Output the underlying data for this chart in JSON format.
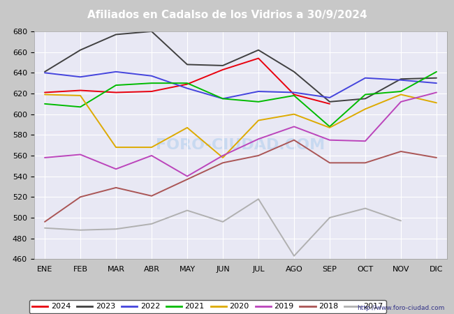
{
  "title": "Afiliados en Cadalso de los Vidrios a 30/9/2024",
  "months": [
    "ENE",
    "FEB",
    "MAR",
    "ABR",
    "MAY",
    "JUN",
    "JUL",
    "AGO",
    "SEP",
    "OCT",
    "NOV",
    "DIC"
  ],
  "ylim": [
    460,
    680
  ],
  "yticks": [
    460,
    480,
    500,
    520,
    540,
    560,
    580,
    600,
    620,
    640,
    660,
    680
  ],
  "series": {
    "2024": {
      "color": "#e8000d",
      "data": [
        621,
        623,
        621,
        622,
        629,
        643,
        654,
        619,
        610,
        null,
        null,
        null
      ]
    },
    "2023": {
      "color": "#404040",
      "data": [
        641,
        662,
        677,
        680,
        648,
        647,
        662,
        641,
        612,
        615,
        634,
        635
      ]
    },
    "2022": {
      "color": "#4444dd",
      "data": [
        640,
        636,
        641,
        637,
        625,
        615,
        622,
        621,
        616,
        635,
        633,
        630
      ]
    },
    "2021": {
      "color": "#00bb00",
      "data": [
        610,
        607,
        628,
        630,
        630,
        615,
        612,
        618,
        588,
        619,
        622,
        641
      ]
    },
    "2020": {
      "color": "#ddaa00",
      "data": [
        619,
        618,
        568,
        568,
        587,
        558,
        594,
        600,
        587,
        605,
        619,
        611
      ]
    },
    "2019": {
      "color": "#bb44bb",
      "data": [
        558,
        561,
        547,
        560,
        540,
        560,
        576,
        588,
        575,
        574,
        612,
        621
      ]
    },
    "2018": {
      "color": "#aa5555",
      "data": [
        496,
        520,
        529,
        521,
        537,
        553,
        560,
        575,
        553,
        553,
        564,
        558
      ]
    },
    "2017": {
      "color": "#b0b0b0",
      "data": [
        490,
        488,
        489,
        494,
        507,
        496,
        518,
        463,
        500,
        509,
        497,
        null
      ]
    }
  },
  "legend_order": [
    "2024",
    "2023",
    "2022",
    "2021",
    "2020",
    "2019",
    "2018",
    "2017"
  ],
  "watermark": "FORO-CIUDAD.COM",
  "url": "http://www.foro-ciudad.com",
  "title_bg": "#4472c4",
  "outer_bg": "#c8c8c8",
  "plot_bg": "#e8e8f4",
  "grid_color": "#ffffff"
}
